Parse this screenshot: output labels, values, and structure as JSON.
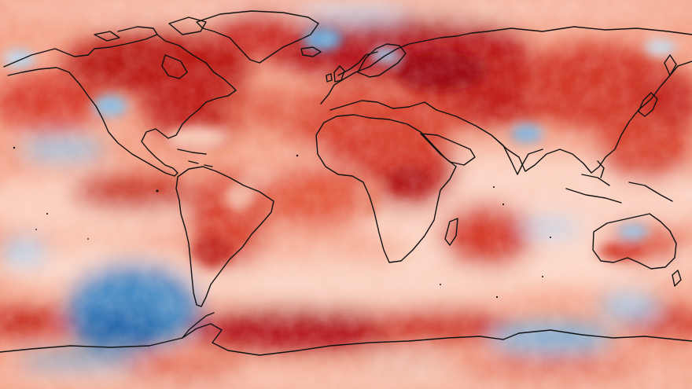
{
  "map": {
    "type": "global temperature anomaly map",
    "projection": "equirectangular",
    "colormap": {
      "strong_warm": "#a50f15",
      "warm": "#d7301f",
      "mild_warm": "#ef6548",
      "slight_warm": "#fcae91",
      "neutral": "#fde0d2",
      "slight_cool": "#c6dbef",
      "cool": "#6baed6",
      "strong_cool": "#2166ac"
    },
    "coastline_color": "#111111",
    "legend": "none",
    "title": "",
    "labels": []
  }
}
